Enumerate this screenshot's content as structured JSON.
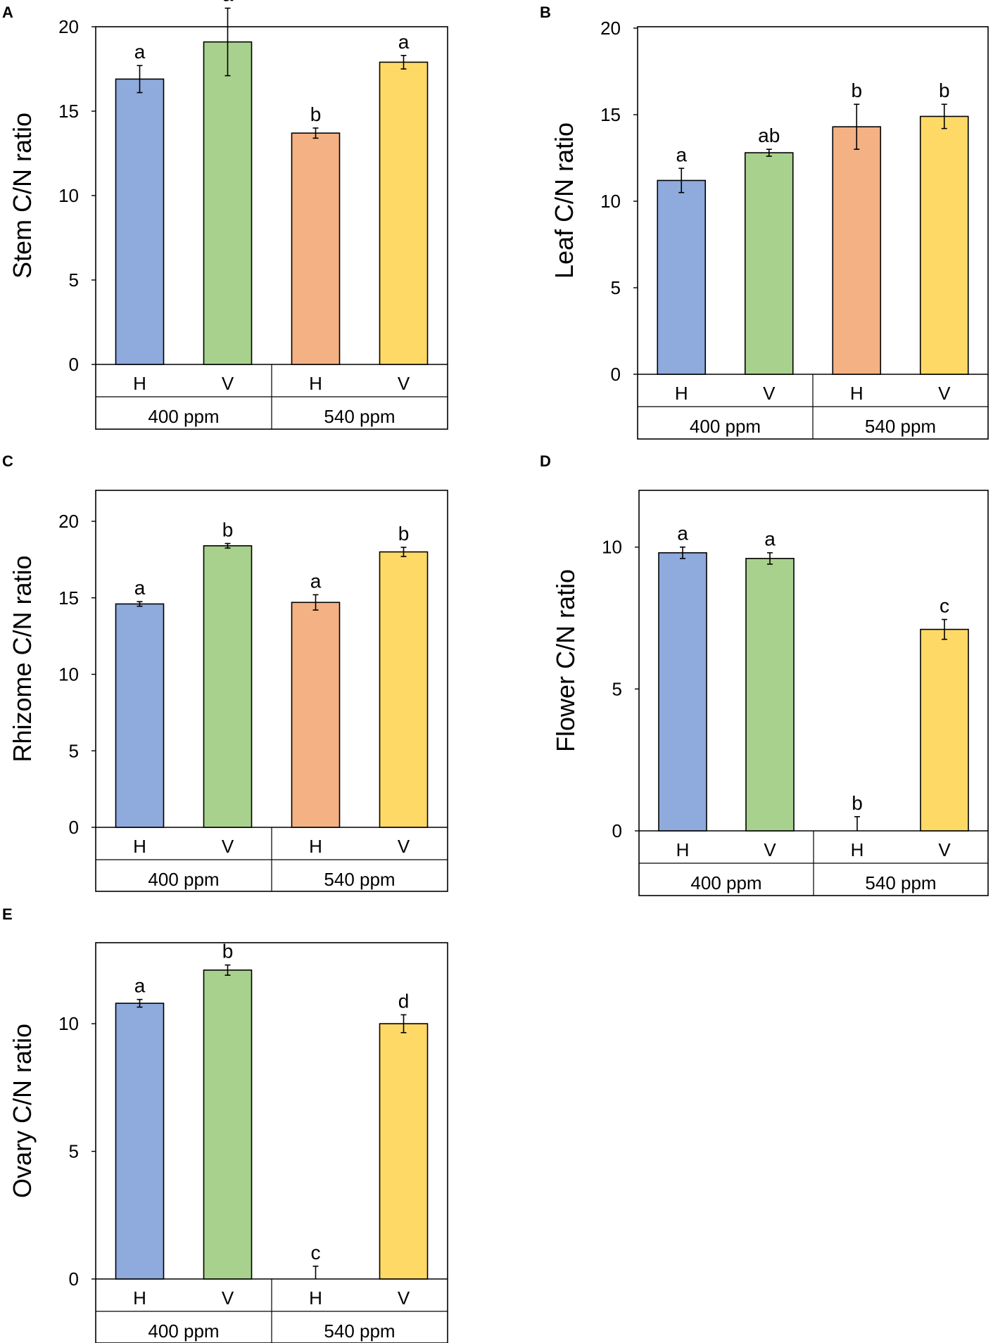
{
  "colors": {
    "blue": "#8faadc",
    "green": "#a9d18e",
    "orange": "#f4b183",
    "yellow": "#ffd966",
    "stroke": "#000000"
  },
  "chart_data": [
    {
      "panel": "A",
      "type": "bar",
      "ylabel": "Stem C/N ratio",
      "ylim": [
        0,
        20
      ],
      "yticks": [
        0,
        5,
        10,
        15,
        20
      ],
      "categories": [
        "H",
        "V",
        "H",
        "V"
      ],
      "groups": [
        "400 ppm",
        "540 ppm"
      ],
      "values": [
        16.9,
        19.1,
        13.7,
        17.9
      ],
      "errors": [
        0.8,
        2.0,
        0.3,
        0.4
      ],
      "letters": [
        "a",
        "a",
        "b",
        "a"
      ],
      "colors": [
        "blue",
        "green",
        "orange",
        "yellow"
      ]
    },
    {
      "panel": "B",
      "type": "bar",
      "ylabel": "Leaf C/N ratio",
      "ylim": [
        0,
        20
      ],
      "yticks": [
        0,
        5,
        10,
        15,
        20
      ],
      "categories": [
        "H",
        "V",
        "H",
        "V"
      ],
      "groups": [
        "400 ppm",
        "540 ppm"
      ],
      "values": [
        11.2,
        12.8,
        14.3,
        14.9
      ],
      "errors": [
        0.7,
        0.2,
        1.3,
        0.7
      ],
      "letters": [
        "a",
        "ab",
        "b",
        "b"
      ],
      "colors": [
        "blue",
        "green",
        "orange",
        "yellow"
      ]
    },
    {
      "panel": "C",
      "type": "bar",
      "ylabel": "Rhizome C/N ratio",
      "ylim": [
        0,
        20
      ],
      "yticks": [
        0,
        5,
        10,
        15,
        20
      ],
      "categories": [
        "H",
        "V",
        "H",
        "V"
      ],
      "groups": [
        "400 ppm",
        "540 ppm"
      ],
      "values": [
        14.6,
        18.4,
        14.7,
        18.0
      ],
      "errors": [
        0.15,
        0.15,
        0.5,
        0.3
      ],
      "letters": [
        "a",
        "b",
        "a",
        "b"
      ],
      "colors": [
        "blue",
        "green",
        "orange",
        "yellow"
      ]
    },
    {
      "panel": "D",
      "type": "bar",
      "ylabel": "Flower C/N ratio",
      "ylim": [
        0,
        12
      ],
      "yticks": [
        0,
        5,
        10
      ],
      "categories": [
        "H",
        "V",
        "H",
        "V"
      ],
      "groups": [
        "400 ppm",
        "540 ppm"
      ],
      "values": [
        9.8,
        9.6,
        0,
        7.1
      ],
      "errors": [
        0.2,
        0.2,
        0.5,
        0.35
      ],
      "letters": [
        "a",
        "a",
        "b",
        "c"
      ],
      "colors": [
        "blue",
        "green",
        "orange",
        "yellow"
      ]
    },
    {
      "panel": "E",
      "type": "bar",
      "ylabel": "Ovary C/N ratio",
      "ylim": [
        0,
        14
      ],
      "yticks": [
        0,
        5,
        10
      ],
      "categories": [
        "H",
        "V",
        "H",
        "V"
      ],
      "groups": [
        "400 ppm",
        "540 ppm"
      ],
      "values": [
        10.8,
        12.1,
        0,
        10.0
      ],
      "errors": [
        0.15,
        0.2,
        0.5,
        0.35
      ],
      "letters": [
        "a",
        "b",
        "c",
        "d"
      ],
      "colors": [
        "blue",
        "green",
        "orange",
        "yellow"
      ]
    }
  ]
}
